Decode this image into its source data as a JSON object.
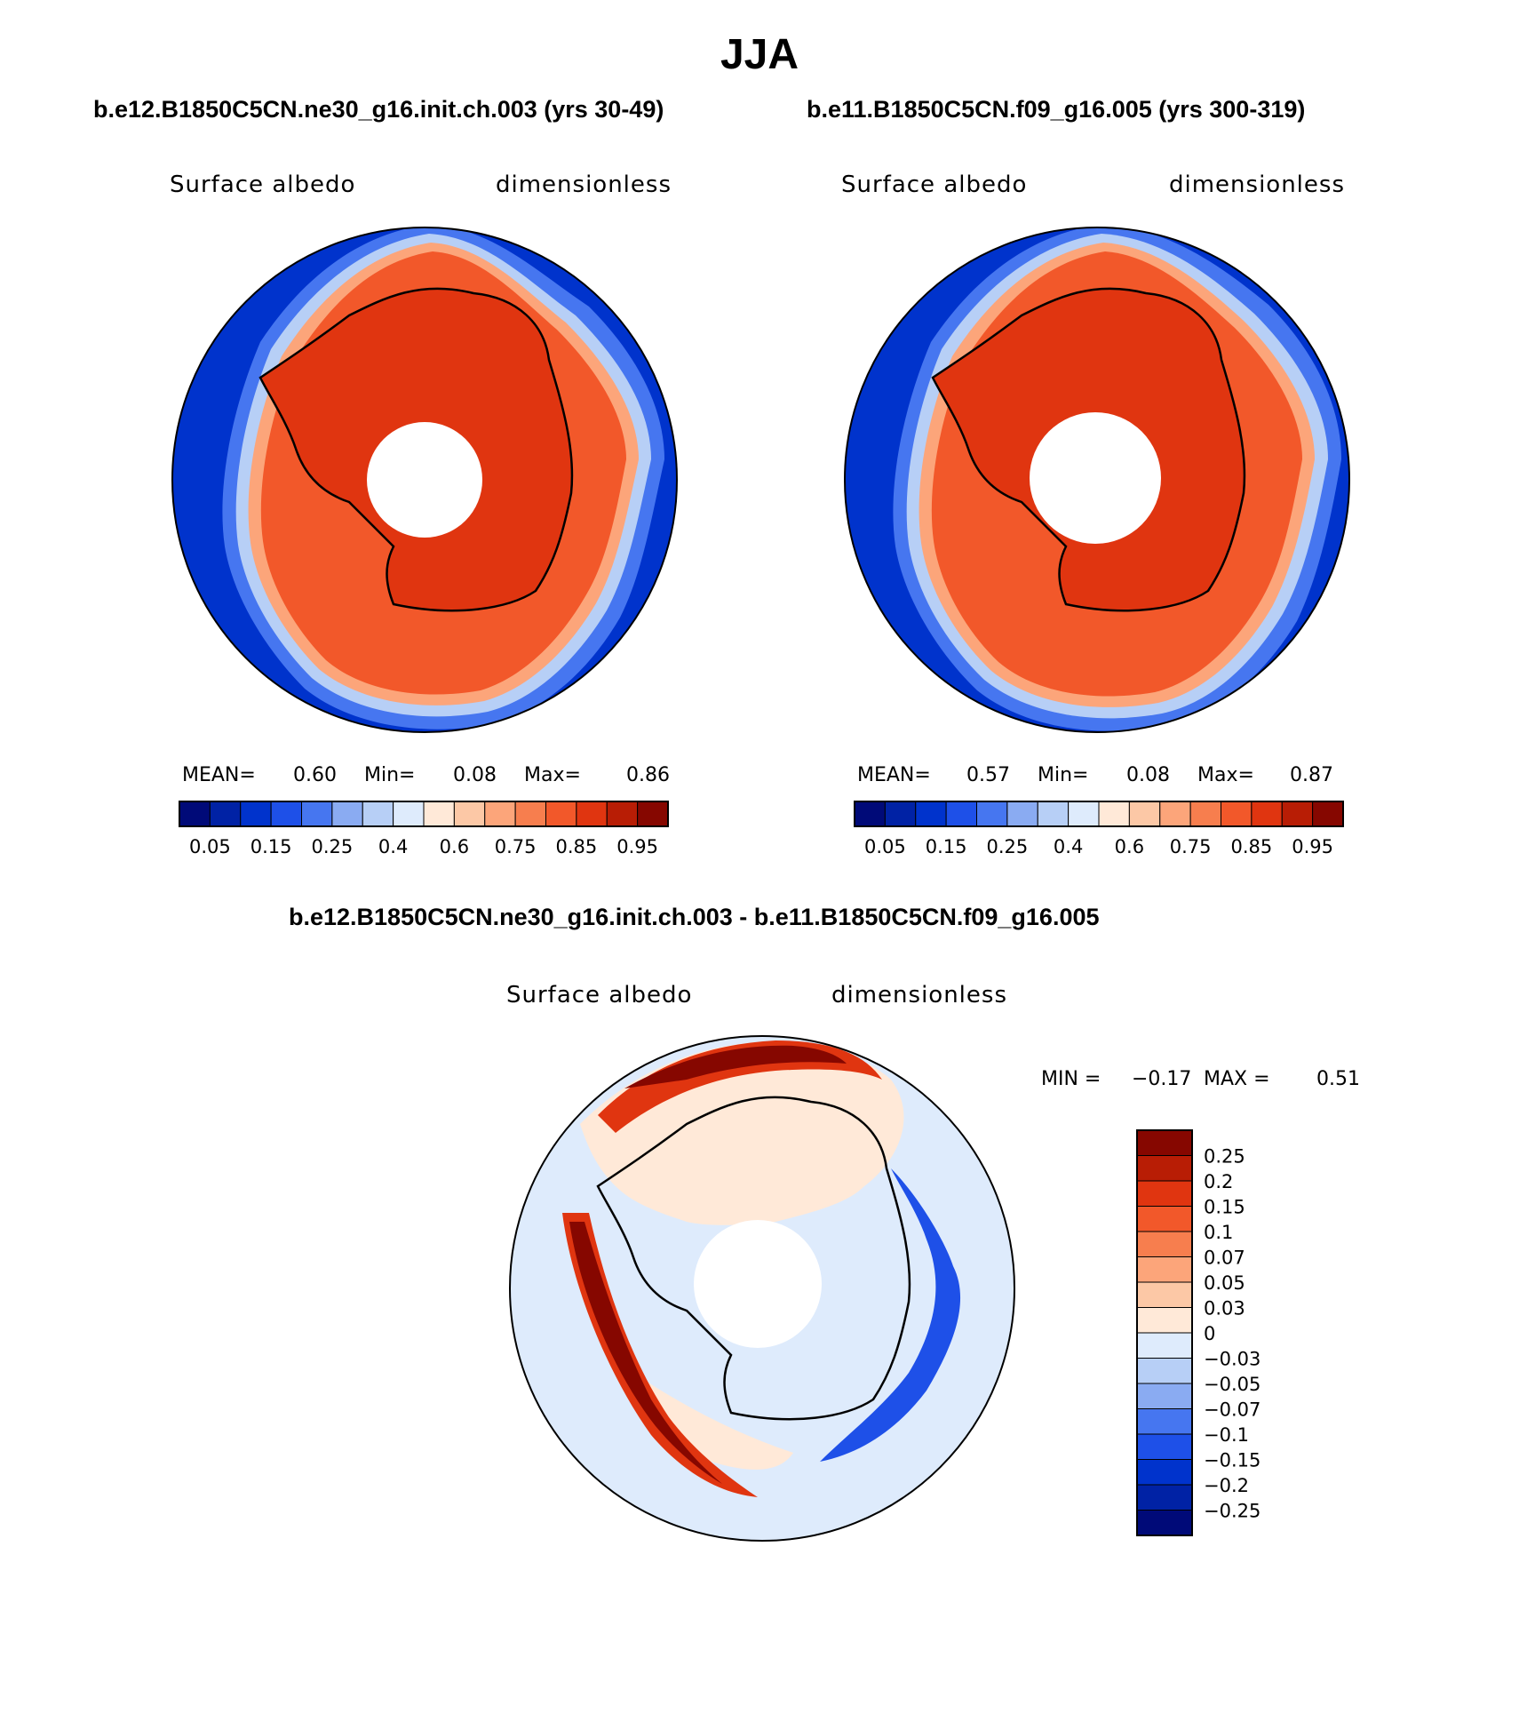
{
  "title": "JJA",
  "panels": [
    {
      "case_title": "b.e12.B1850C5CN.ne30_g16.init.ch.003 (yrs 30-49)",
      "variable": "Surface albedo",
      "units": "dimensionless",
      "stats": {
        "mean_label": "MEAN=",
        "mean": "0.60",
        "min_label": "Min=",
        "min": "0.08",
        "max_label": "Max=",
        "max": "0.86"
      }
    },
    {
      "case_title": "b.e11.B1850C5CN.f09_g16.005 (yrs 300-319)",
      "variable": "Surface albedo",
      "units": "dimensionless",
      "stats": {
        "mean_label": "MEAN=",
        "mean": "0.57",
        "min_label": "Min=",
        "min": "0.08",
        "max_label": "Max=",
        "max": "0.87"
      }
    },
    {
      "case_title": "b.e12.B1850C5CN.ne30_g16.init.ch.003 - b.e11.B1850C5CN.f09_g16.005",
      "variable": "Surface albedo",
      "units": "dimensionless",
      "stats": {
        "min_label": "MIN =",
        "min": "−0.17",
        "max_label": "MAX =",
        "max": "0.51"
      }
    }
  ],
  "chart_data": [
    {
      "type": "heatmap",
      "projection": "south-polar-stereographic",
      "title": "b.e12.B1850C5CN.ne30_g16.init.ch.003 (yrs 30-49)",
      "variable": "Surface albedo",
      "units": "dimensionless",
      "mean": 0.6,
      "min": 0.08,
      "max": 0.86,
      "colorbar": {
        "orientation": "horizontal",
        "levels": [
          0.05,
          0.1,
          0.15,
          0.2,
          0.25,
          0.3,
          0.4,
          0.5,
          0.6,
          0.65,
          0.7,
          0.75,
          0.8,
          0.85,
          0.9,
          0.95
        ],
        "tick_labels": [
          "0.05",
          "0.15",
          "0.25",
          "0.4",
          "0.6",
          "0.75",
          "0.85",
          "0.95"
        ],
        "colors": [
          "#000a78",
          "#0022a5",
          "#0033cc",
          "#1e50e8",
          "#4676f0",
          "#8aabf2",
          "#b7cff6",
          "#deebfc",
          "#ffe9d8",
          "#fcc8a6",
          "#fca57a",
          "#f77e4e",
          "#f2582a",
          "#e03510",
          "#b81d05",
          "#860700"
        ]
      }
    },
    {
      "type": "heatmap",
      "projection": "south-polar-stereographic",
      "title": "b.e11.B1850C5CN.f09_g16.005 (yrs 300-319)",
      "variable": "Surface albedo",
      "units": "dimensionless",
      "mean": 0.57,
      "min": 0.08,
      "max": 0.87,
      "colorbar": {
        "orientation": "horizontal",
        "levels": [
          0.05,
          0.1,
          0.15,
          0.2,
          0.25,
          0.3,
          0.4,
          0.5,
          0.6,
          0.65,
          0.7,
          0.75,
          0.8,
          0.85,
          0.9,
          0.95
        ],
        "tick_labels": [
          "0.05",
          "0.15",
          "0.25",
          "0.4",
          "0.6",
          "0.75",
          "0.85",
          "0.95"
        ],
        "colors": [
          "#000a78",
          "#0022a5",
          "#0033cc",
          "#1e50e8",
          "#4676f0",
          "#8aabf2",
          "#b7cff6",
          "#deebfc",
          "#ffe9d8",
          "#fcc8a6",
          "#fca57a",
          "#f77e4e",
          "#f2582a",
          "#e03510",
          "#b81d05",
          "#860700"
        ]
      }
    },
    {
      "type": "heatmap",
      "projection": "south-polar-stereographic",
      "title": "b.e12.B1850C5CN.ne30_g16.init.ch.003 - b.e11.B1850C5CN.f09_g16.005",
      "variable": "Surface albedo",
      "units": "dimensionless",
      "min": -0.17,
      "max": 0.51,
      "colorbar": {
        "orientation": "vertical",
        "tick_labels": [
          "0.25",
          "0.2",
          "0.15",
          "0.1",
          "0.07",
          "0.05",
          "0.03",
          "0",
          "−0.03",
          "−0.05",
          "−0.07",
          "−0.1",
          "−0.15",
          "−0.2",
          "−0.25"
        ],
        "colors": [
          "#860700",
          "#b81d05",
          "#e03510",
          "#f2582a",
          "#f77e4e",
          "#fca57a",
          "#fcc8a6",
          "#ffe9d8",
          "#deebfc",
          "#b7cff6",
          "#8aabf2",
          "#4676f0",
          "#1e50e8",
          "#0033cc",
          "#0022a5",
          "#000a78"
        ]
      }
    }
  ]
}
